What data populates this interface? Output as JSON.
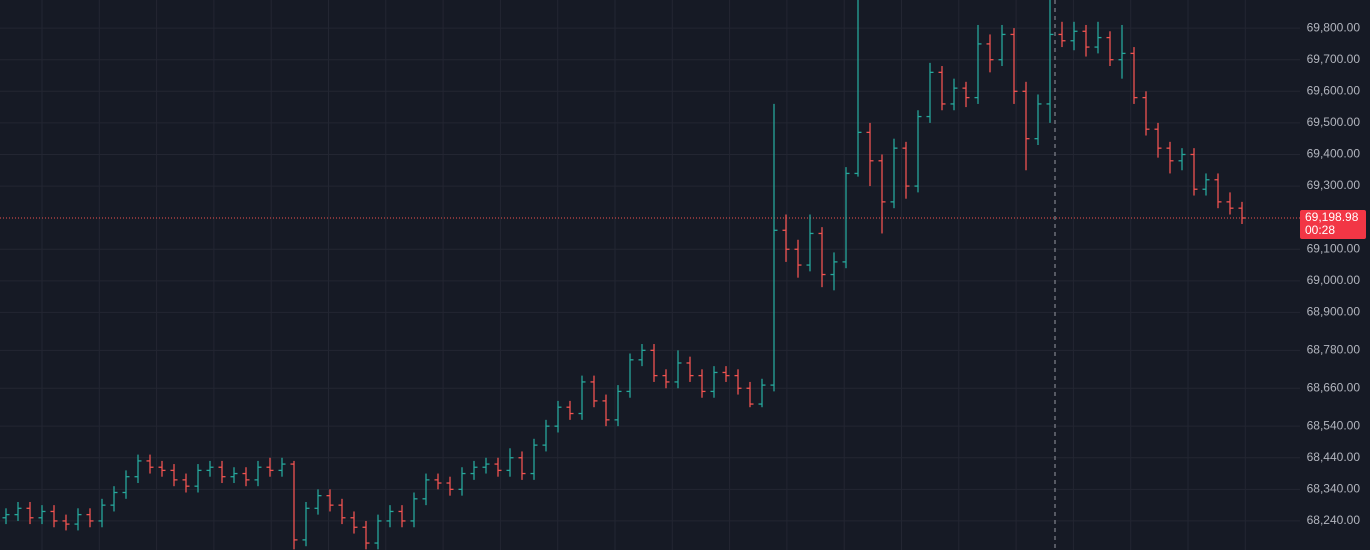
{
  "chart_data": {
    "type": "ohlc",
    "up_color": "#26a69a",
    "down_color": "#ef5350",
    "ylim": [
      68148,
      69889
    ],
    "yticks": [
      {
        "value": 68240,
        "label": "68,240.00"
      },
      {
        "value": 68340,
        "label": "68,340.00"
      },
      {
        "value": 68440,
        "label": "68,440.00"
      },
      {
        "value": 68540,
        "label": "68,540.00"
      },
      {
        "value": 68660,
        "label": "68,660.00"
      },
      {
        "value": 68780,
        "label": "68,780.00"
      },
      {
        "value": 68900,
        "label": "68,900.00"
      },
      {
        "value": 69000,
        "label": "69,000.00"
      },
      {
        "value": 69100,
        "label": "69,100.00"
      },
      {
        "value": 69300,
        "label": "69,300.00"
      },
      {
        "value": 69400,
        "label": "69,400.00"
      },
      {
        "value": 69500,
        "label": "69,500.00"
      },
      {
        "value": 69600,
        "label": "69,600.00"
      },
      {
        "value": 69700,
        "label": "69,700.00"
      },
      {
        "value": 69800,
        "label": "69,800.00"
      }
    ],
    "grid": true,
    "last_price": {
      "value": 69198.98,
      "label": "69,198.98"
    },
    "countdown": "00:28",
    "open": [
      68250,
      68260,
      68280,
      68250,
      68270,
      68240,
      68230,
      68260,
      68240,
      68290,
      68330,
      68380,
      68430,
      68410,
      68400,
      68370,
      68350,
      68400,
      68410,
      68380,
      68390,
      68370,
      68410,
      68400,
      68420,
      68180,
      68280,
      68320,
      68290,
      68250,
      68220,
      68170,
      68240,
      68270,
      68240,
      68310,
      68370,
      68360,
      68340,
      68390,
      68410,
      68420,
      68400,
      68440,
      68390,
      68480,
      68540,
      68600,
      68580,
      68680,
      68620,
      68560,
      68650,
      68750,
      68780,
      68700,
      68680,
      68740,
      68700,
      68650,
      68710,
      68700,
      68660,
      68610,
      68670,
      69160,
      69100,
      69050,
      69150,
      69020,
      69060,
      69340,
      69470,
      69380,
      69250,
      69420,
      69300,
      69520,
      69660,
      69560,
      69610,
      69580,
      69750,
      69700,
      69780,
      69600,
      69450,
      69560,
      69780,
      69760,
      69790,
      69740,
      69770,
      69700,
      69720,
      69580,
      69480,
      69420,
      69380,
      69400,
      69290,
      69320,
      69250,
      69230
    ],
    "high": [
      68280,
      68300,
      68300,
      68290,
      68290,
      68260,
      68280,
      68280,
      68310,
      68350,
      68400,
      68450,
      68450,
      68430,
      68420,
      68390,
      68420,
      68430,
      68430,
      68410,
      68410,
      68430,
      68440,
      68440,
      68430,
      68300,
      68340,
      68340,
      68310,
      68270,
      68240,
      68260,
      68290,
      68290,
      68330,
      68390,
      68390,
      68380,
      68410,
      68430,
      68440,
      68440,
      68470,
      68460,
      68500,
      68560,
      68620,
      68620,
      68700,
      68700,
      68640,
      68670,
      68770,
      68800,
      68800,
      68720,
      68780,
      68760,
      68720,
      68730,
      68730,
      68720,
      68680,
      68690,
      69560,
      69210,
      69130,
      69210,
      69170,
      69090,
      69360,
      69890,
      69500,
      69400,
      69450,
      69440,
      69540,
      69690,
      69680,
      69640,
      69630,
      69810,
      69780,
      69810,
      69800,
      69630,
      69590,
      69890,
      69820,
      69820,
      69810,
      69820,
      69790,
      69810,
      69740,
      69600,
      69500,
      69440,
      69420,
      69420,
      69340,
      69340,
      69280,
      69250
    ],
    "low": [
      68230,
      68240,
      68230,
      68230,
      68220,
      68210,
      68210,
      68220,
      68220,
      68270,
      68310,
      68360,
      68390,
      68380,
      68350,
      68330,
      68330,
      68380,
      68360,
      68360,
      68350,
      68350,
      68380,
      68380,
      68150,
      68160,
      68260,
      68270,
      68230,
      68200,
      68150,
      68150,
      68220,
      68220,
      68220,
      68290,
      68340,
      68320,
      68320,
      68370,
      68390,
      68380,
      68380,
      68370,
      68370,
      68460,
      68520,
      68560,
      68560,
      68600,
      68540,
      68540,
      68630,
      68730,
      68680,
      68660,
      68660,
      68680,
      68630,
      68630,
      68680,
      68640,
      68600,
      68600,
      68650,
      69060,
      69010,
      69030,
      68980,
      68970,
      69040,
      69330,
      69300,
      69150,
      69230,
      69260,
      69280,
      69500,
      69540,
      69540,
      69550,
      69560,
      69660,
      69680,
      69560,
      69350,
      69430,
      69500,
      69740,
      69730,
      69710,
      69720,
      69680,
      69640,
      69560,
      69460,
      69390,
      69340,
      69350,
      69270,
      69270,
      69230,
      69210,
      69180
    ],
    "close": [
      68260,
      68280,
      68250,
      68270,
      68240,
      68230,
      68260,
      68240,
      68290,
      68330,
      68380,
      68430,
      68410,
      68400,
      68370,
      68350,
      68400,
      68410,
      68380,
      68390,
      68370,
      68410,
      68400,
      68420,
      68180,
      68280,
      68320,
      68290,
      68250,
      68220,
      68170,
      68240,
      68270,
      68240,
      68310,
      68370,
      68360,
      68340,
      68390,
      68410,
      68420,
      68400,
      68440,
      68390,
      68480,
      68540,
      68600,
      68580,
      68680,
      68620,
      68560,
      68650,
      68750,
      68780,
      68700,
      68680,
      68740,
      68700,
      68650,
      68710,
      68700,
      68660,
      68610,
      68670,
      69160,
      69100,
      69050,
      69150,
      69020,
      69060,
      69340,
      69470,
      69380,
      69250,
      69420,
      69300,
      69520,
      69660,
      69560,
      69610,
      69580,
      69750,
      69700,
      69780,
      69600,
      69450,
      69560,
      69780,
      69760,
      69790,
      69740,
      69770,
      69700,
      69720,
      69580,
      69480,
      69420,
      69380,
      69400,
      69290,
      69320,
      69250,
      69230,
      69198.98
    ]
  }
}
